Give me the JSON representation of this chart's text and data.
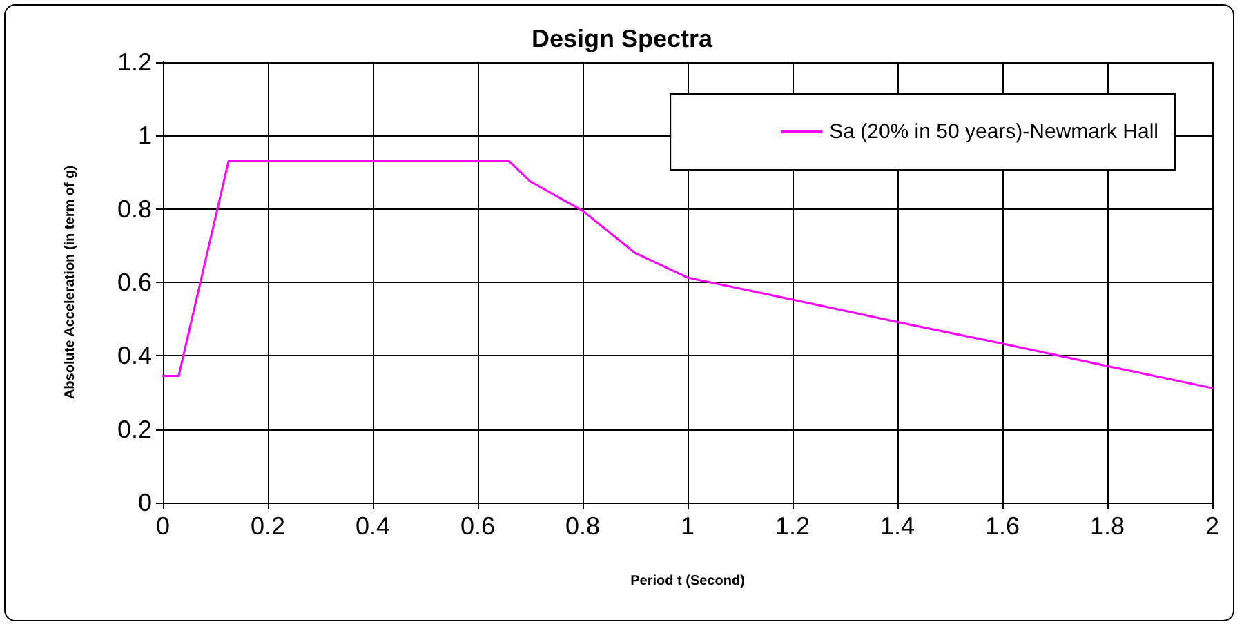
{
  "chart_data": {
    "type": "line",
    "title": "Design Spectra",
    "xlabel": "Period t (Second)",
    "ylabel": "Absolute Acceleration (in term of g)",
    "series": [
      {
        "name": "Sa (20% in 50 years)-Newmark Hall",
        "color": "#ff00ff",
        "x": [
          0,
          0.03,
          0.125,
          0.66,
          0.7,
          0.8,
          0.9,
          1.0,
          1.2,
          1.4,
          1.6,
          1.8,
          2.0
        ],
        "values": [
          0.345,
          0.345,
          0.93,
          0.93,
          0.875,
          0.795,
          0.68,
          0.613,
          0.553,
          0.492,
          0.433,
          0.372,
          0.312
        ]
      }
    ],
    "xlim": [
      0,
      2
    ],
    "xticks": [
      0,
      0.2,
      0.4,
      0.6,
      0.8,
      1,
      1.2,
      1.4,
      1.6,
      1.8,
      2
    ],
    "ylim": [
      0,
      1.2
    ],
    "yticks": [
      0,
      0.2,
      0.4,
      0.6,
      0.8,
      1,
      1.2
    ],
    "grid": true,
    "legend": "top right",
    "marker": "none",
    "line_style": "solid"
  }
}
